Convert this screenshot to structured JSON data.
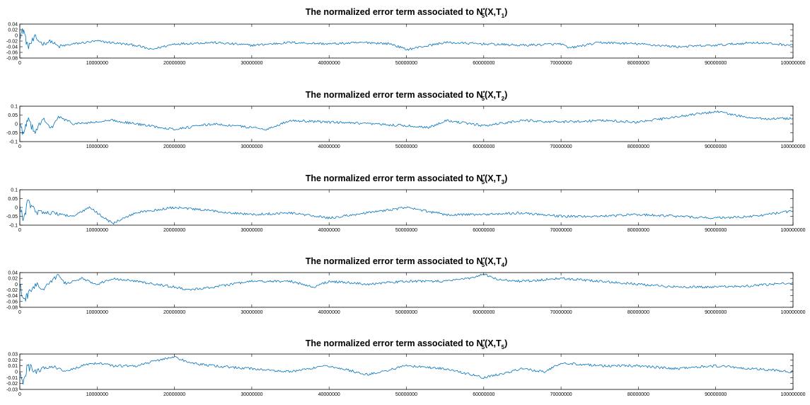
{
  "figure": {
    "line_color": "#0072BD",
    "background": "#ffffff"
  },
  "chart_data": [
    {
      "type": "line",
      "title_prefix": "The normalized error term associated to N",
      "title_sup": "*",
      "title_sub": "5",
      "title_mid": "(X,T",
      "title_index": "1",
      "title_suffix": ")",
      "xlim": [
        0,
        100000000
      ],
      "ylim": [
        -0.08,
        0.04
      ],
      "yticks": [
        0.04,
        0.02,
        0,
        -0.02,
        -0.04,
        -0.06,
        -0.08
      ],
      "xticks": [
        0,
        10000000,
        20000000,
        30000000,
        40000000,
        50000000,
        60000000,
        70000000,
        80000000,
        90000000,
        100000000
      ],
      "series": [
        {
          "x": [
            0,
            500000,
            1000000,
            2000000,
            3000000,
            4000000,
            5000000,
            7000000,
            10000000,
            15000000,
            17000000,
            20000000,
            25000000,
            30000000,
            35000000,
            40000000,
            45000000,
            48000000,
            50000000,
            52000000,
            55000000,
            60000000,
            65000000,
            70000000,
            71000000,
            75000000,
            80000000,
            85000000,
            90000000,
            95000000,
            100000000
          ],
          "y": [
            0.0,
            0.02,
            -0.04,
            -0.01,
            -0.03,
            -0.02,
            -0.04,
            -0.03,
            -0.02,
            -0.035,
            -0.05,
            -0.03,
            -0.025,
            -0.035,
            -0.025,
            -0.03,
            -0.025,
            -0.03,
            -0.05,
            -0.04,
            -0.025,
            -0.03,
            -0.035,
            -0.03,
            -0.045,
            -0.025,
            -0.03,
            -0.04,
            -0.035,
            -0.025,
            -0.035
          ]
        }
      ]
    },
    {
      "type": "line",
      "title_prefix": "The normalized error term associated to N",
      "title_sup": "*",
      "title_sub": "5",
      "title_mid": "(X,T",
      "title_index": "2",
      "title_suffix": ")",
      "xlim": [
        0,
        100000000
      ],
      "ylim": [
        -0.1,
        0.1
      ],
      "yticks": [
        0.1,
        0.05,
        0,
        -0.05,
        -0.1
      ],
      "xticks": [
        0,
        10000000,
        20000000,
        30000000,
        40000000,
        50000000,
        60000000,
        70000000,
        80000000,
        90000000,
        100000000
      ],
      "series": [
        {
          "x": [
            0,
            500000,
            1000000,
            2000000,
            3000000,
            4000000,
            5000000,
            7000000,
            10000000,
            12000000,
            15000000,
            20000000,
            25000000,
            30000000,
            32000000,
            35000000,
            40000000,
            45000000,
            50000000,
            53000000,
            55000000,
            60000000,
            65000000,
            70000000,
            75000000,
            80000000,
            85000000,
            90000000,
            95000000,
            100000000
          ],
          "y": [
            0.0,
            -0.06,
            0.02,
            -0.04,
            0.03,
            -0.03,
            0.04,
            0.0,
            0.01,
            0.02,
            0.0,
            -0.03,
            0.0,
            -0.02,
            -0.03,
            0.02,
            0.01,
            0.0,
            -0.01,
            -0.02,
            0.02,
            -0.01,
            0.02,
            0.01,
            0.02,
            0.01,
            0.04,
            0.07,
            0.03,
            0.03
          ]
        }
      ]
    },
    {
      "type": "line",
      "title_prefix": "The normalized error term associated to N",
      "title_sup": "*",
      "title_sub": "5",
      "title_mid": "(X,T",
      "title_index": "3",
      "title_suffix": ")",
      "xlim": [
        0,
        100000000
      ],
      "ylim": [
        -0.1,
        0.1
      ],
      "yticks": [
        0.1,
        0.05,
        0,
        -0.05,
        -0.1
      ],
      "xticks": [
        0,
        10000000,
        20000000,
        30000000,
        40000000,
        50000000,
        60000000,
        70000000,
        80000000,
        90000000,
        100000000
      ],
      "series": [
        {
          "x": [
            0,
            500000,
            1000000,
            2000000,
            4000000,
            7000000,
            9000000,
            11000000,
            12000000,
            15000000,
            20000000,
            25000000,
            30000000,
            35000000,
            40000000,
            45000000,
            50000000,
            55000000,
            60000000,
            65000000,
            70000000,
            75000000,
            80000000,
            85000000,
            90000000,
            95000000,
            100000000
          ],
          "y": [
            0.0,
            -0.07,
            0.03,
            -0.02,
            -0.03,
            -0.05,
            0.0,
            -0.06,
            -0.09,
            -0.03,
            0.0,
            -0.02,
            -0.04,
            -0.03,
            -0.06,
            -0.03,
            0.0,
            -0.04,
            -0.04,
            -0.03,
            -0.05,
            -0.05,
            -0.04,
            -0.05,
            -0.06,
            -0.05,
            -0.02
          ]
        }
      ]
    },
    {
      "type": "line",
      "title_prefix": "The normalized error term associated to N",
      "title_sup": "*",
      "title_sub": "5",
      "title_mid": "(X,T",
      "title_index": "4",
      "title_suffix": ")",
      "xlim": [
        0,
        100000000
      ],
      "ylim": [
        -0.08,
        0.04
      ],
      "yticks": [
        0.04,
        0.02,
        0,
        -0.02,
        -0.04,
        -0.06,
        -0.08
      ],
      "xticks": [
        0,
        10000000,
        20000000,
        30000000,
        40000000,
        50000000,
        60000000,
        70000000,
        80000000,
        90000000,
        100000000
      ],
      "series": [
        {
          "x": [
            0,
            500000,
            1000000,
            2000000,
            3000000,
            4000000,
            5000000,
            6000000,
            8000000,
            10000000,
            12000000,
            15000000,
            20000000,
            22000000,
            25000000,
            30000000,
            35000000,
            38000000,
            40000000,
            45000000,
            50000000,
            55000000,
            58000000,
            60000000,
            62000000,
            65000000,
            70000000,
            75000000,
            80000000,
            85000000,
            90000000,
            95000000,
            100000000
          ],
          "y": [
            0.0,
            -0.06,
            -0.04,
            0.0,
            -0.02,
            0.01,
            0.03,
            0.0,
            0.02,
            0.0,
            0.02,
            0.01,
            -0.01,
            -0.02,
            -0.01,
            0.01,
            0.01,
            -0.01,
            0.01,
            0.0,
            0.01,
            0.01,
            0.02,
            0.035,
            0.015,
            0.01,
            0.02,
            0.01,
            0.0,
            -0.01,
            -0.01,
            -0.005,
            0.005
          ]
        }
      ]
    },
    {
      "type": "line",
      "title_prefix": "The normalized error term associated to N",
      "title_sup": "*",
      "title_sub": "5",
      "title_mid": "(X,T",
      "title_index": "5",
      "title_suffix": ")",
      "xlim": [
        0,
        100000000
      ],
      "ylim": [
        -0.03,
        0.03
      ],
      "yticks": [
        0.03,
        0.02,
        0.01,
        0,
        -0.01,
        -0.02,
        -0.03
      ],
      "xticks": [
        0,
        10000000,
        20000000,
        30000000,
        40000000,
        50000000,
        60000000,
        70000000,
        80000000,
        90000000,
        100000000
      ],
      "series": [
        {
          "x": [
            0,
            500000,
            1000000,
            2000000,
            4000000,
            6000000,
            8000000,
            10000000,
            12000000,
            15000000,
            18000000,
            20000000,
            22000000,
            25000000,
            30000000,
            35000000,
            40000000,
            45000000,
            50000000,
            55000000,
            60000000,
            65000000,
            68000000,
            70000000,
            75000000,
            80000000,
            85000000,
            90000000,
            95000000,
            100000000
          ],
          "y": [
            0.0,
            -0.02,
            0.01,
            0.0,
            0.01,
            0.0,
            0.01,
            0.015,
            0.01,
            0.01,
            0.02,
            0.025,
            0.015,
            0.01,
            0.005,
            0.0,
            0.01,
            -0.005,
            0.01,
            0.005,
            -0.01,
            0.005,
            0.0,
            0.015,
            0.01,
            0.01,
            0.005,
            0.01,
            0.005,
            0.0
          ]
        }
      ]
    }
  ]
}
